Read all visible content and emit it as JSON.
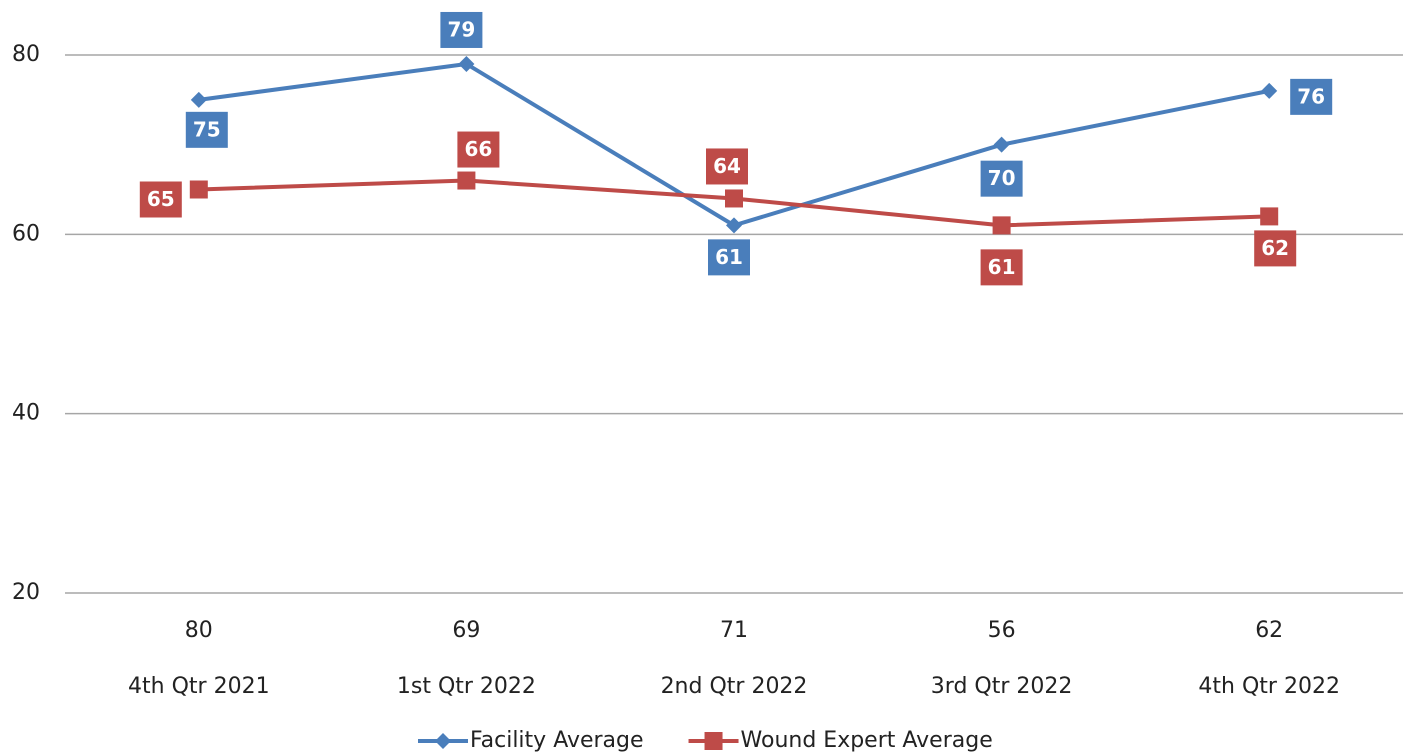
{
  "chart_data": {
    "type": "line",
    "categories": [
      "4th Qtr 2021",
      "1st Qtr 2022",
      "2nd Qtr 2022",
      "3rd Qtr 2022",
      "4th Qtr 2022"
    ],
    "category_counts": [
      80,
      69,
      71,
      56,
      62
    ],
    "series": [
      {
        "name": "Facility Average",
        "color": "#4a7ebb",
        "marker": "diamond",
        "values": [
          75,
          79,
          61,
          70,
          76
        ]
      },
      {
        "name": "Wound Expert Average",
        "color": "#be4b48",
        "marker": "square",
        "values": [
          65,
          66,
          64,
          61,
          62
        ]
      }
    ],
    "ylim": [
      20,
      80
    ],
    "yticks": [
      20,
      40,
      60,
      80
    ],
    "grid": true,
    "legend": "bottom"
  }
}
